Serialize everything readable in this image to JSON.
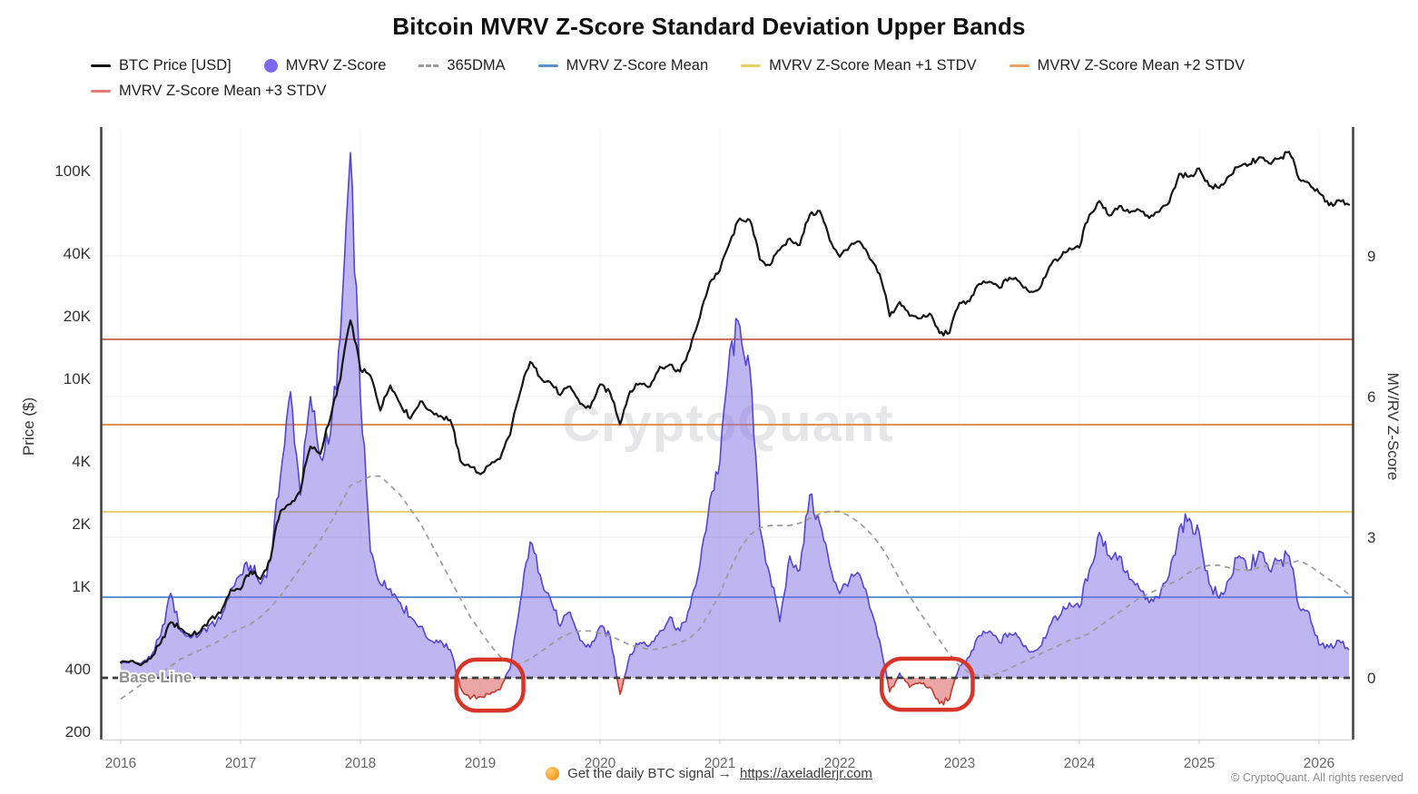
{
  "title": "Bitcoin MVRV Z-Score Standard Deviation Upper Bands",
  "watermark": "CryptoQuant",
  "baseline_label": "Base Line",
  "legend": [
    {
      "label": "BTC Price [USD]",
      "swatch": "line",
      "color": "#141414"
    },
    {
      "label": "MVRV Z-Score",
      "swatch": "circle",
      "color": "#7b68ee"
    },
    {
      "label": "365DMA",
      "swatch": "dash",
      "color": "#9b9b9b"
    },
    {
      "label": "MVRV Z-Score Mean",
      "swatch": "line",
      "color": "#5d8fcb"
    },
    {
      "label": "MVRV Z-Score Mean +1 STDV",
      "swatch": "line",
      "color": "#e6cf67"
    },
    {
      "label": "MVRV Z-Score Mean +2 STDV",
      "swatch": "line",
      "color": "#e8a266"
    },
    {
      "label": "MVRV Z-Score Mean +3 STDV",
      "swatch": "line",
      "color": "#e07f77"
    }
  ],
  "axes": {
    "left_title": "Price ($)",
    "right_title": "MV/RV Z-Score",
    "price_ticks": [
      {
        "label": "100K",
        "value": 100000
      },
      {
        "label": "40K",
        "value": 40000
      },
      {
        "label": "20K",
        "value": 20000
      },
      {
        "label": "10K",
        "value": 10000
      },
      {
        "label": "4K",
        "value": 4000
      },
      {
        "label": "2K",
        "value": 2000
      },
      {
        "label": "1K",
        "value": 1000
      },
      {
        "label": "400",
        "value": 400
      },
      {
        "label": "200",
        "value": 200
      }
    ],
    "z_ticks": [
      {
        "label": "0",
        "value": 0
      },
      {
        "label": "3",
        "value": 3
      },
      {
        "label": "6",
        "value": 6
      },
      {
        "label": "9",
        "value": 9
      }
    ],
    "years": [
      2016,
      2017,
      2018,
      2019,
      2020,
      2021,
      2022,
      2023,
      2024,
      2025,
      2026
    ]
  },
  "chart_data": {
    "type": "line",
    "frequency": "monthly",
    "start": "2016-01",
    "end": "2026-04",
    "price_axis": {
      "scale": "log",
      "range": [
        200,
        100000
      ]
    },
    "z_axis": {
      "range": [
        0,
        9
      ]
    },
    "series": [
      {
        "name": "BTC Price [USD]",
        "axis": "price",
        "type": "line",
        "color": "#151515",
        "values": [
          430,
          437,
          416,
          448,
          531,
          670,
          625,
          575,
          608,
          700,
          742,
          960,
          965,
          1180,
          1080,
          1350,
          2300,
          2480,
          2870,
          4700,
          4340,
          6450,
          9900,
          19000,
          11000,
          10300,
          7000,
          9250,
          7500,
          6400,
          7750,
          7000,
          6600,
          6300,
          4020,
          3740,
          3460,
          3850,
          4100,
          5350,
          8560,
          12000,
          10100,
          9600,
          8300,
          9150,
          7550,
          7200,
          9350,
          8550,
          6000,
          8650,
          9450,
          9140,
          11350,
          11650,
          10780,
          13800,
          19700,
          29000,
          33100,
          45200,
          58800,
          57700,
          37300,
          35000,
          41600,
          47100,
          43800,
          61300,
          64000,
          46200,
          38500,
          43200,
          45500,
          37600,
          31800,
          19900,
          23300,
          20000,
          19400,
          20500,
          16500,
          16550,
          23100,
          23500,
          28500,
          29200,
          27200,
          30500,
          29200,
          26000,
          27000,
          34500,
          37700,
          42300,
          42600,
          61200,
          71300,
          60600,
          67500,
          62700,
          64600,
          59000,
          63300,
          70200,
          96400,
          93400,
          102400,
          84400,
          82500,
          94200,
          104600,
          107100,
          115800,
          108200,
          114000,
          123000,
          91000,
          87000,
          78000,
          68000,
          72000,
          68500
        ]
      },
      {
        "name": "MVRV Z-Score",
        "axis": "z",
        "type": "area",
        "color": "#5446cf",
        "fill": "rgba(125,108,228,0.5)",
        "negative_color": "#c23b30",
        "negative_fill": "rgba(214,78,74,0.5)",
        "values": [
          0.3,
          0.35,
          0.3,
          0.45,
          0.9,
          1.8,
          1.0,
          0.85,
          0.95,
          1.15,
          1.25,
          1.9,
          2.2,
          2.4,
          2.0,
          2.5,
          4.3,
          6.1,
          3.9,
          6.0,
          4.7,
          5.2,
          7.3,
          11.2,
          6.0,
          2.7,
          2.0,
          1.9,
          1.6,
          1.3,
          1.1,
          0.8,
          0.8,
          0.6,
          -0.2,
          -0.45,
          -0.4,
          -0.35,
          -0.25,
          0.2,
          1.6,
          2.9,
          2.2,
          1.7,
          1.1,
          1.4,
          0.8,
          0.65,
          1.1,
          0.9,
          -0.35,
          0.5,
          0.75,
          0.7,
          1.0,
          1.3,
          1.0,
          1.5,
          2.4,
          3.8,
          4.6,
          7.0,
          7.5,
          6.6,
          3.2,
          2.2,
          1.2,
          2.6,
          2.3,
          3.9,
          3.3,
          2.4,
          1.8,
          2.1,
          2.2,
          1.5,
          0.8,
          -0.3,
          0.1,
          -0.2,
          -0.1,
          -0.2,
          -0.55,
          -0.45,
          0.25,
          0.45,
          0.9,
          1.0,
          0.75,
          0.95,
          0.85,
          0.55,
          0.65,
          1.1,
          1.3,
          1.6,
          1.5,
          2.3,
          3.1,
          2.6,
          2.6,
          2.1,
          1.9,
          1.6,
          1.7,
          2.2,
          3.2,
          3.4,
          3.1,
          2.0,
          1.7,
          2.1,
          2.6,
          2.3,
          2.7,
          2.3,
          2.5,
          2.6,
          1.5,
          1.4,
          0.7,
          0.65,
          0.8,
          0.6
        ]
      },
      {
        "name": "365DMA",
        "axis": "z",
        "type": "dashed-line",
        "color": "#9a9a9a",
        "values": [
          -0.45,
          -0.3,
          -0.15,
          0.0,
          0.1,
          0.25,
          0.4,
          0.5,
          0.6,
          0.7,
          0.8,
          0.95,
          1.05,
          1.15,
          1.3,
          1.5,
          1.75,
          2.05,
          2.35,
          2.65,
          2.95,
          3.3,
          3.7,
          4.1,
          4.2,
          4.3,
          4.3,
          4.1,
          3.9,
          3.6,
          3.3,
          2.9,
          2.5,
          2.1,
          1.7,
          1.3,
          1.0,
          0.7,
          0.45,
          0.32,
          0.3,
          0.4,
          0.55,
          0.7,
          0.85,
          0.95,
          1.0,
          1.0,
          0.95,
          0.9,
          0.8,
          0.7,
          0.65,
          0.6,
          0.62,
          0.68,
          0.75,
          0.85,
          1.05,
          1.4,
          1.8,
          2.3,
          2.75,
          3.05,
          3.2,
          3.25,
          3.25,
          3.25,
          3.3,
          3.4,
          3.5,
          3.55,
          3.55,
          3.45,
          3.3,
          3.1,
          2.85,
          2.5,
          2.1,
          1.75,
          1.4,
          1.1,
          0.8,
          0.5,
          0.25,
          0.1,
          0.05,
          0.05,
          0.1,
          0.2,
          0.3,
          0.4,
          0.5,
          0.6,
          0.7,
          0.8,
          0.85,
          0.95,
          1.1,
          1.25,
          1.4,
          1.55,
          1.7,
          1.8,
          1.9,
          2.0,
          2.1,
          2.25,
          2.35,
          2.4,
          2.4,
          2.35,
          2.3,
          2.3,
          2.35,
          2.4,
          2.45,
          2.45,
          2.5,
          2.4,
          2.25,
          2.1,
          1.95,
          1.78
        ]
      }
    ],
    "hlines": [
      {
        "id": "mean",
        "label": "MVRV Z-Score Mean",
        "z": 1.72,
        "color": "#5d8fcb"
      },
      {
        "id": "mean-plus1",
        "label": "MVRV Z-Score Mean +1 STDV",
        "z": 3.54,
        "color": "#e6cf67"
      },
      {
        "id": "mean-plus2",
        "label": "MVRV Z-Score Mean +2 STDV",
        "z": 5.4,
        "color": "#e2924a"
      },
      {
        "id": "mean-plus3",
        "label": "MVRV Z-Score Mean +3 STDV",
        "z": 7.22,
        "color": "#cf625c"
      }
    ],
    "baseline": {
      "z": 0,
      "label": "Base Line"
    },
    "annotations": [
      {
        "name": "2019-bottom-circle",
        "t0": 2018.8,
        "t1": 2019.36,
        "z0": -0.7,
        "z1": 0.39
      },
      {
        "name": "2022-bottom-circle",
        "t0": 2022.35,
        "t1": 2023.11,
        "z0": -0.68,
        "z1": 0.41
      }
    ],
    "annotation_color": "#d8352a"
  },
  "footer": {
    "signal_text": "Get the daily BTC signal →",
    "link": "https://axeladlerjr.com",
    "copyright": "© CryptoQuant. All rights reserved"
  }
}
